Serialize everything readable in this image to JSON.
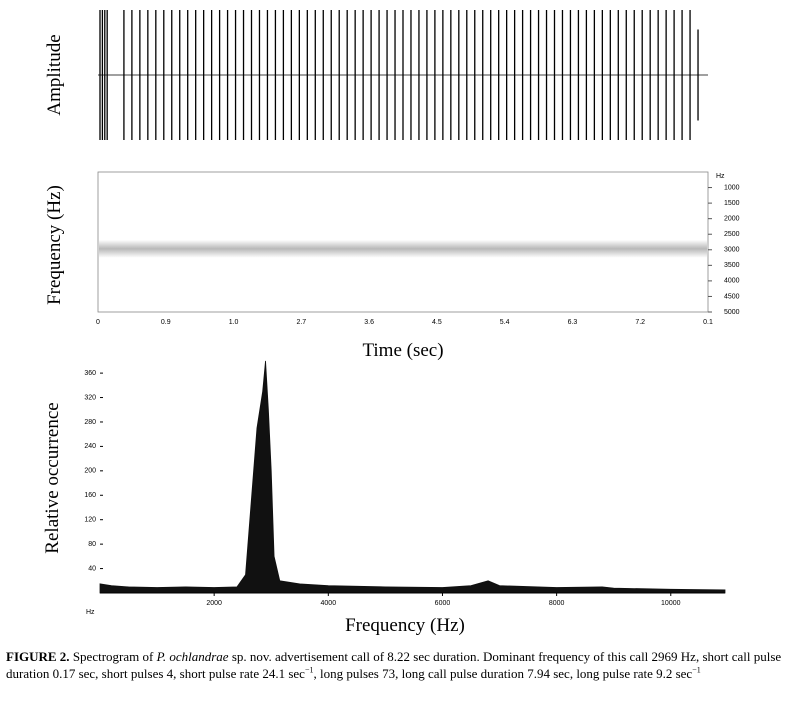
{
  "chart_data": [
    {
      "type": "waveform",
      "ylabel": "Amplitude",
      "xlim": [
        0,
        7.6
      ],
      "x": [
        0,
        0.03,
        0.06,
        0.09,
        0.3,
        0.4,
        0.5,
        0.6,
        0.7,
        0.8,
        0.9,
        1.0,
        1.1,
        1.2,
        1.3,
        1.4,
        1.5,
        1.6,
        1.7,
        1.8,
        1.9,
        2.0,
        2.1,
        2.2,
        2.3,
        2.4,
        2.5,
        2.6,
        2.7,
        2.8,
        2.9,
        3.0,
        3.1,
        3.2,
        3.3,
        3.4,
        3.5,
        3.6,
        3.7,
        3.8,
        3.9,
        4.0,
        4.1,
        4.2,
        4.3,
        4.4,
        4.5,
        4.6,
        4.7,
        4.8,
        4.9,
        5.0,
        5.1,
        5.2,
        5.3,
        5.4,
        5.5,
        5.6,
        5.7,
        5.8,
        5.9,
        6.0,
        6.1,
        6.2,
        6.3,
        6.4,
        6.5,
        6.6,
        6.7,
        6.8,
        6.9,
        7.0,
        7.1,
        7.2,
        7.3,
        7.4,
        7.5
      ],
      "values": [
        1,
        1,
        1,
        1,
        1,
        1,
        1,
        1,
        1,
        1,
        1,
        1,
        1,
        1,
        1,
        1,
        1,
        1,
        1,
        1,
        1,
        1,
        1,
        1,
        1,
        1,
        1,
        1,
        1,
        1,
        1,
        1,
        1,
        1,
        1,
        1,
        1,
        1,
        1,
        1,
        1,
        1,
        1,
        1,
        1,
        1,
        1,
        1,
        1,
        1,
        1,
        1,
        1,
        1,
        1,
        1,
        1,
        1,
        1,
        1,
        1,
        1,
        1,
        1,
        1,
        1,
        1,
        1,
        1,
        1,
        1,
        1,
        1,
        1,
        1,
        1,
        0.7
      ],
      "ylim": [
        -1,
        1
      ],
      "color": "#000000"
    },
    {
      "type": "spectrogram",
      "ylabel": "Frequency  (Hz)",
      "xlabel": "Time (sec)",
      "yunit": "Hz",
      "ylim": [
        500,
        5000
      ],
      "yticks": [
        1000,
        1500,
        2000,
        2500,
        3000,
        3500,
        4000,
        4500,
        5000
      ],
      "xtick_labels": [
        "0",
        "0.9",
        "1.0",
        "2.7",
        "3.6",
        "4.5",
        "5.4",
        "6.3",
        "7.2",
        "0.1"
      ],
      "dominant_frequency": 2969,
      "color": "#9a9a9a"
    },
    {
      "type": "area",
      "ylabel": "Relative occurrence",
      "xlabel": "Frequency (Hz)",
      "xunit": "Hz",
      "xlim": [
        0,
        10950
      ],
      "ylim": [
        0,
        370
      ],
      "xticks": [
        2000,
        4000,
        6000,
        8000,
        10000
      ],
      "yticks": [
        40,
        80,
        120,
        160,
        200,
        240,
        280,
        320,
        360
      ],
      "x": [
        0,
        200,
        500,
        1000,
        1500,
        2000,
        2400,
        2550,
        2650,
        2750,
        2850,
        2900,
        2950,
        3000,
        3050,
        3150,
        3500,
        4000,
        5000,
        6000,
        6500,
        6800,
        7000,
        8000,
        8800,
        9000,
        10000,
        10950
      ],
      "values": [
        15,
        12,
        10,
        9,
        10,
        9,
        10,
        30,
        150,
        270,
        330,
        380,
        300,
        200,
        60,
        20,
        15,
        12,
        10,
        9,
        12,
        20,
        12,
        9,
        10,
        8,
        6,
        5
      ],
      "color": "#111111"
    }
  ],
  "caption": [
    "FIGURE 2.",
    " Spectrogram of ",
    "P. ochlandrae",
    " sp. nov. advertisement call of 8.22 sec duration. Dominant frequency of this call 2969 Hz, short call pulse duration 0.17 sec, short pulses 4, short pulse rate 24.1 sec",
    "−1",
    ", long pulses 73, long call pulse duration 7.94 sec, long pulse rate 9.2 sec",
    "−1"
  ]
}
